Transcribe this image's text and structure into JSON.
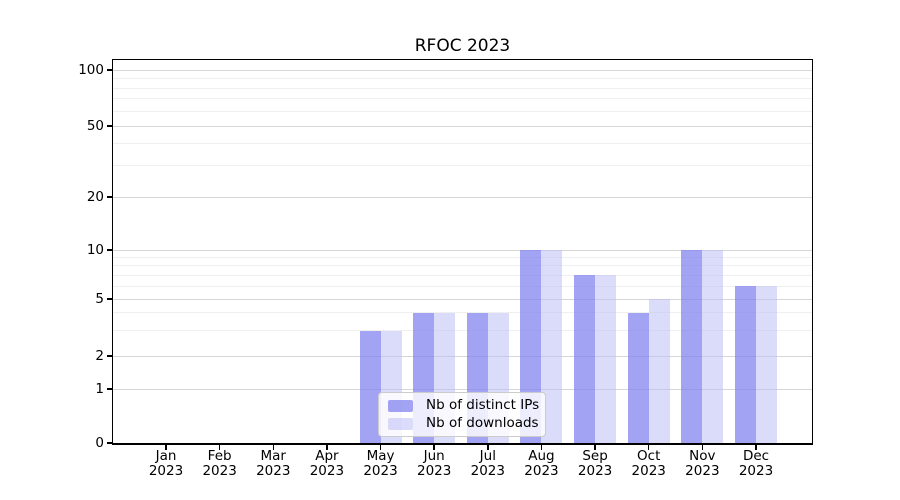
{
  "chart_data": {
    "type": "bar",
    "title": "RFOC 2023",
    "categories": [
      {
        "month": "Jan",
        "year": "2023"
      },
      {
        "month": "Feb",
        "year": "2023"
      },
      {
        "month": "Mar",
        "year": "2023"
      },
      {
        "month": "Apr",
        "year": "2023"
      },
      {
        "month": "May",
        "year": "2023"
      },
      {
        "month": "Jun",
        "year": "2023"
      },
      {
        "month": "Jul",
        "year": "2023"
      },
      {
        "month": "Aug",
        "year": "2023"
      },
      {
        "month": "Sep",
        "year": "2023"
      },
      {
        "month": "Oct",
        "year": "2023"
      },
      {
        "month": "Nov",
        "year": "2023"
      },
      {
        "month": "Dec",
        "year": "2023"
      }
    ],
    "series": [
      {
        "name": "Nb of distinct IPs",
        "color": "rgba(128,128,238,0.72)",
        "values": [
          0,
          0,
          0,
          0,
          3,
          4,
          4,
          10,
          7,
          4,
          10,
          6
        ]
      },
      {
        "name": "Nb of downloads",
        "color": "rgba(190,190,245,0.55)",
        "values": [
          0,
          0,
          0,
          0,
          3,
          4,
          4,
          10,
          7,
          5,
          10,
          6
        ]
      }
    ],
    "xlabel": "",
    "ylabel": "",
    "yscale": "log-above-1 with zero baseline",
    "yticks_major": [
      0,
      1,
      2,
      5,
      10,
      20,
      50,
      100
    ],
    "yticks_minor": [
      3,
      4,
      6,
      7,
      8,
      9,
      30,
      40,
      60,
      70,
      80,
      90
    ],
    "ylim": [
      0,
      120
    ],
    "grid": "horizontal",
    "legend_position": "lower center-left"
  },
  "colors": {
    "grid_major": "#d6d6d6",
    "grid_minor": "#efefef",
    "spine": "#000000",
    "legend_bg": "rgba(255,255,255,0.8)",
    "legend_border": "#cccccc",
    "text": "#000000"
  }
}
